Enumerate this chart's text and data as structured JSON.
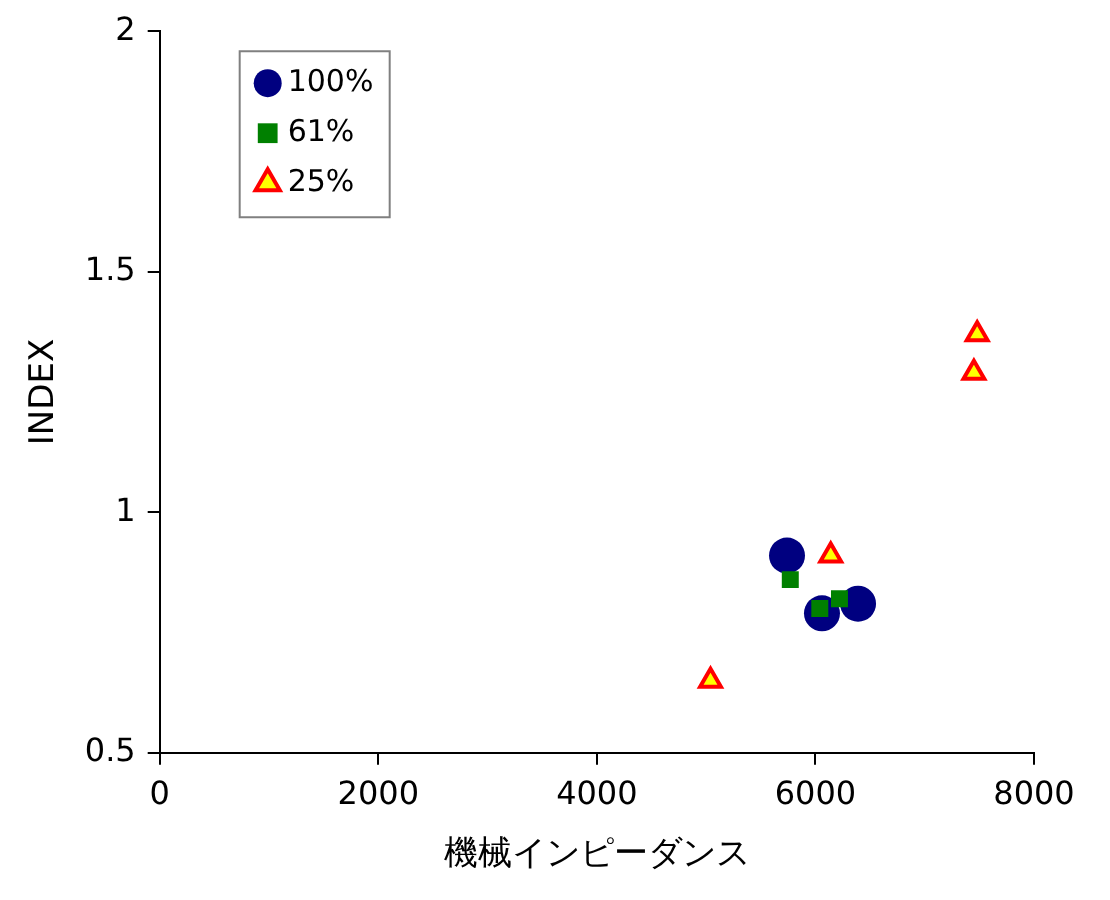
{
  "chart_data": {
    "type": "scatter",
    "xlabel": "機械インピーダンス",
    "ylabel": "INDEX",
    "xlim": [
      0,
      8000
    ],
    "xticks": [
      0,
      2000,
      4000,
      6000,
      8000
    ],
    "ylim": [
      0.5,
      2
    ],
    "yticks": [
      0.5,
      1,
      1.5,
      2
    ],
    "grid": false,
    "legend": "top left",
    "series": [
      {
        "name": "100%",
        "marker": "circle",
        "color": "#000080",
        "x": [
          5740,
          6060,
          6390
        ],
        "values": [
          0.91,
          0.79,
          0.81
        ]
      },
      {
        "name": "61%",
        "marker": "square",
        "color": "#008000",
        "x": [
          5770,
          6040,
          6220
        ],
        "values": [
          0.86,
          0.8,
          0.82
        ]
      },
      {
        "name": "25%",
        "marker": "triangle",
        "color": "#ffff00",
        "x": [
          5040,
          6140,
          7480,
          7450
        ],
        "values": [
          0.65,
          0.91,
          1.37,
          1.29
        ]
      }
    ]
  }
}
